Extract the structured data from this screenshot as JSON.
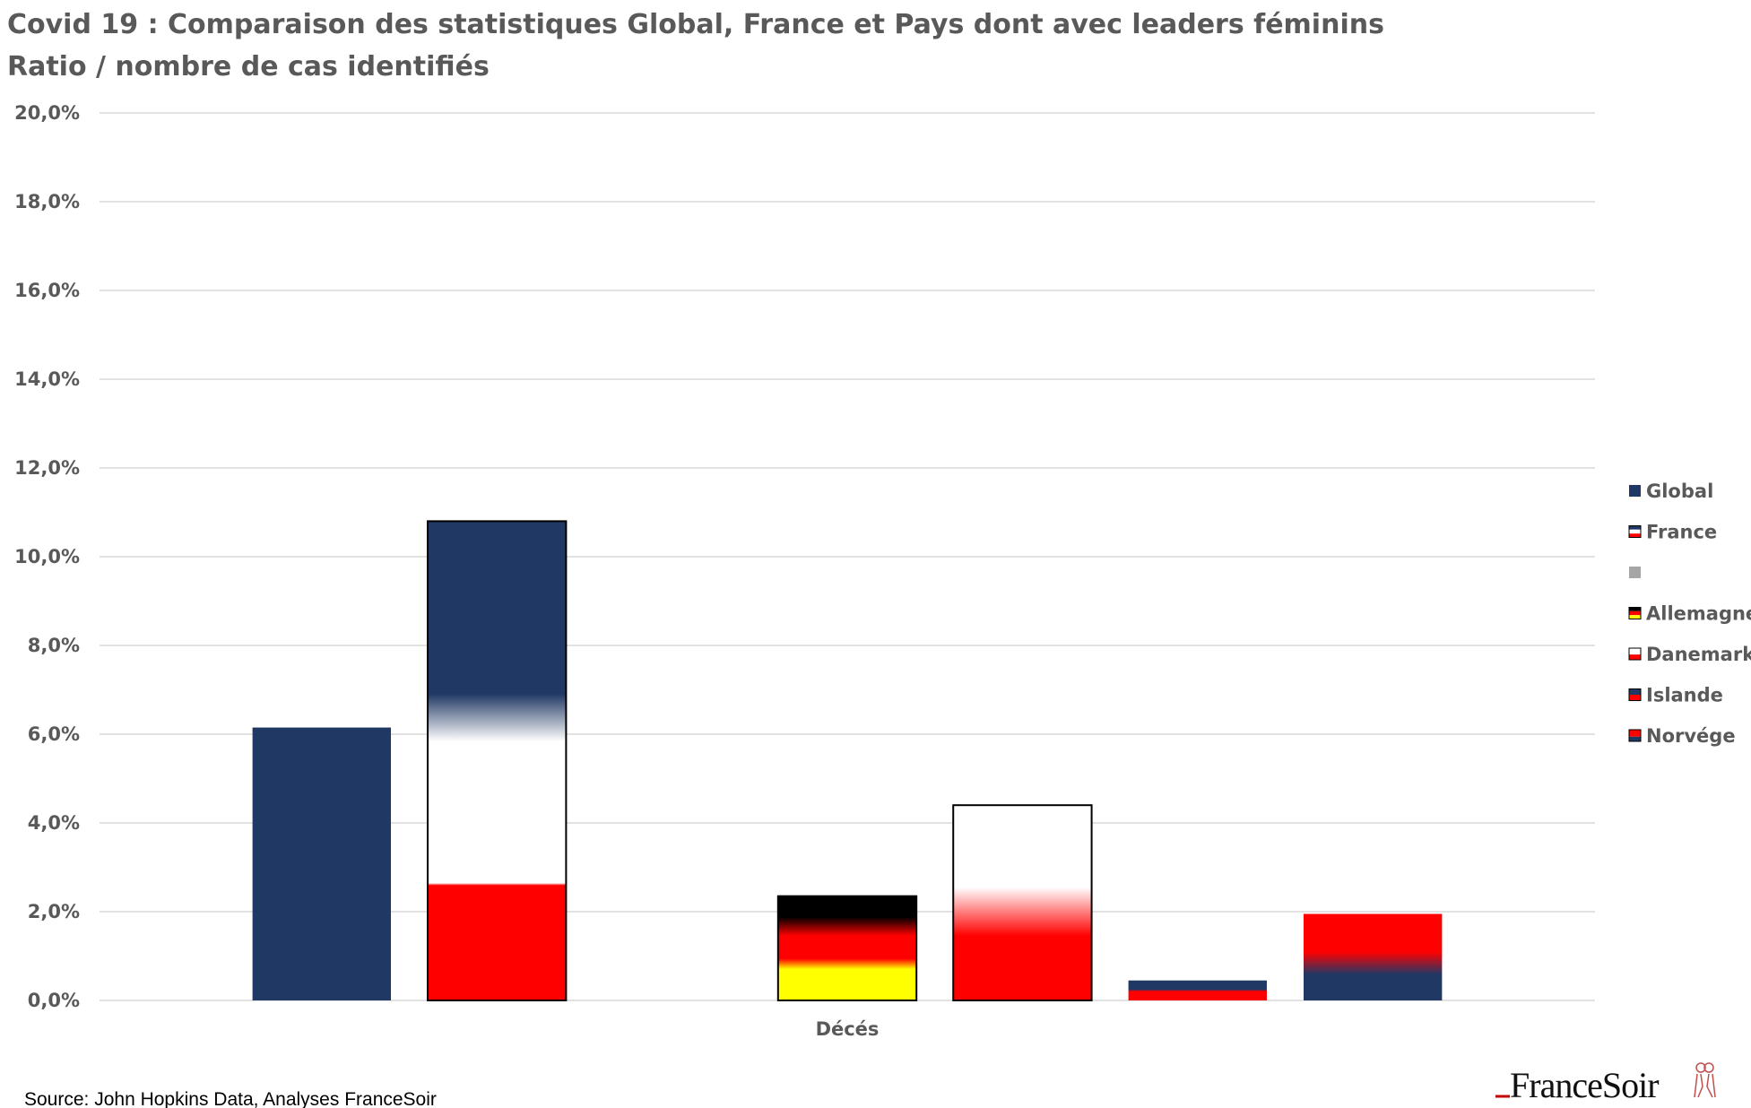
{
  "chart_data": {
    "type": "bar",
    "title": "Covid 19 : Comparaison des statistiques Global, France et Pays dont avec leaders féminins",
    "subtitle": "Ratio / nombre de cas identifiés",
    "categories": [
      "Décés"
    ],
    "ylim": [
      0,
      20
    ],
    "yticks": [
      "0,0%",
      "2,0%",
      "4,0%",
      "6,0%",
      "8,0%",
      "10,0%",
      "12,0%",
      "14,0%",
      "16,0%",
      "18,0%",
      "20,0%"
    ],
    "grid": true,
    "legend_position": "right",
    "series": [
      {
        "name": "Global",
        "values": [
          6.15
        ],
        "flag": "global"
      },
      {
        "name": "France",
        "values": [
          10.8
        ],
        "flag": "france"
      },
      {
        "name": "",
        "values": [
          0
        ],
        "flag": "gray"
      },
      {
        "name": "Allemagne",
        "values": [
          2.35
        ],
        "flag": "germany"
      },
      {
        "name": "Danemark",
        "values": [
          4.4
        ],
        "flag": "denmark"
      },
      {
        "name": "Islande",
        "values": [
          0.45
        ],
        "flag": "iceland"
      },
      {
        "name": "Norvége",
        "values": [
          1.95
        ],
        "flag": "norway"
      }
    ]
  },
  "colors": {
    "navy": "#203864",
    "red": "#ff0000",
    "white": "#ffffff",
    "black": "#000000",
    "yellow": "#ffff00",
    "gray": "#a6a6a6",
    "text": "#595959",
    "grid": "#d9d9d9"
  },
  "source": "Source: John Hopkins Data, Analyses FranceSoir",
  "logo": "FranceSoir"
}
